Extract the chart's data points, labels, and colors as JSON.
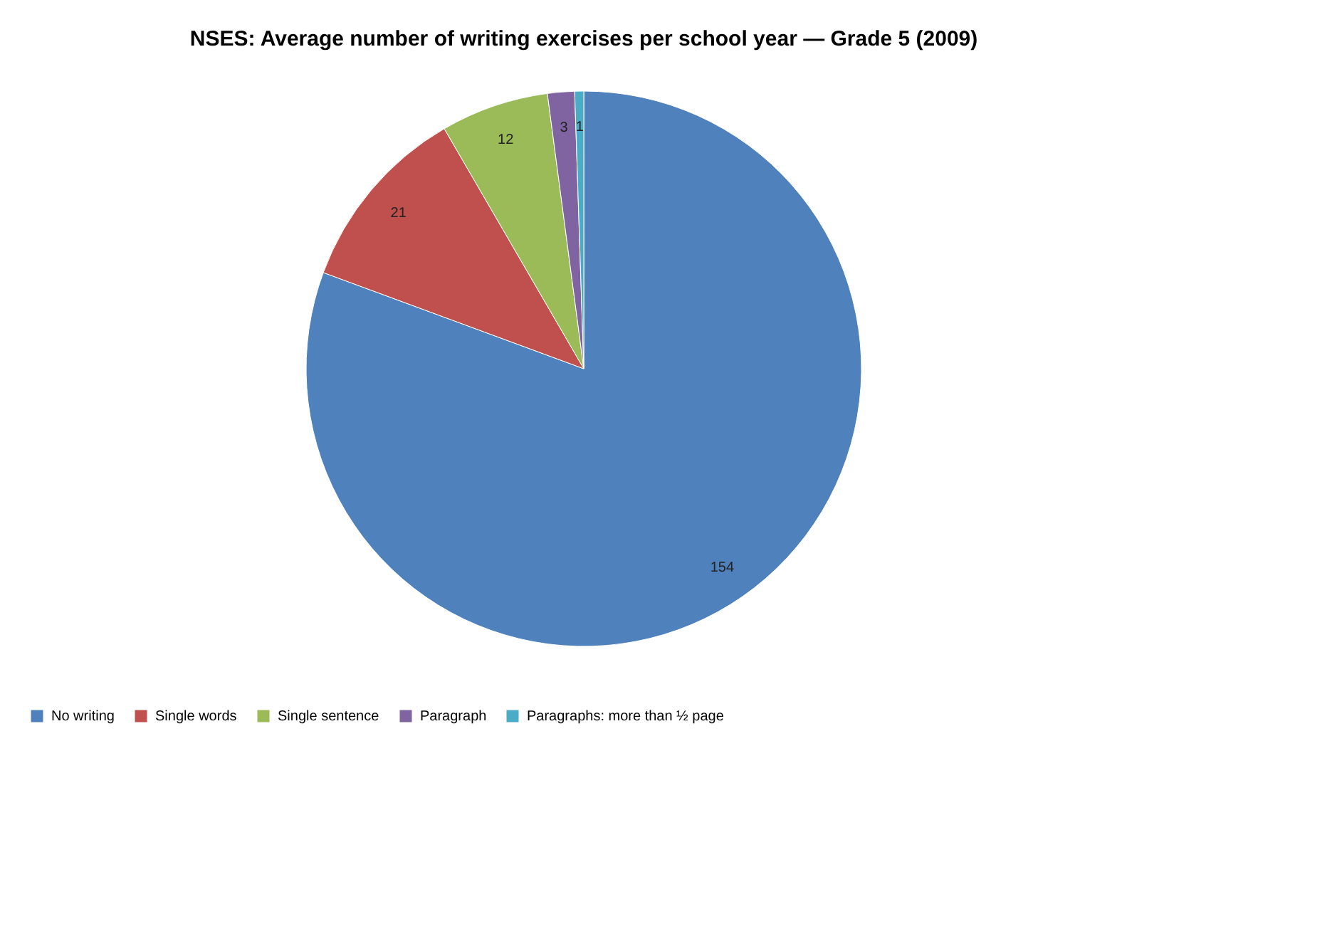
{
  "chart_data": {
    "type": "pie",
    "title": "NSES: Average number of writing exercises per school year — Grade 5 (2009)",
    "categories": [
      "No writing",
      "Single words",
      "Single sentence",
      "Paragraph",
      "Paragraphs: more than ½ page"
    ],
    "values": [
      154,
      21,
      12,
      3,
      1
    ],
    "colors": [
      "#4f81bd",
      "#c0504d",
      "#9bbb59",
      "#8064a2",
      "#4bacc6"
    ],
    "data_labels": true,
    "legend": "bottom"
  }
}
